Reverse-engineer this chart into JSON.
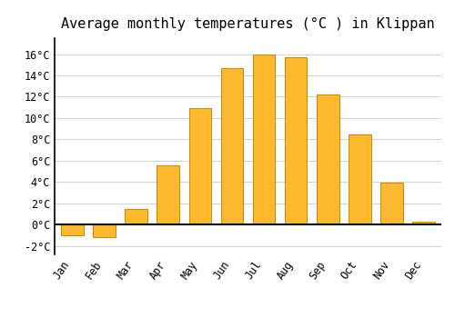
{
  "title": "Average monthly temperatures (°C ) in Klippan",
  "months": [
    "Jan",
    "Feb",
    "Mar",
    "Apr",
    "May",
    "Jun",
    "Jul",
    "Aug",
    "Sep",
    "Oct",
    "Nov",
    "Dec"
  ],
  "values": [
    -1.0,
    -1.2,
    1.5,
    5.6,
    10.9,
    14.7,
    16.0,
    15.7,
    12.2,
    8.5,
    3.9,
    0.3
  ],
  "bar_color": "#FDB92E",
  "bar_edge_color": "#CC8800",
  "background_color": "#FFFFFF",
  "grid_color": "#CCCCCC",
  "ylim": [
    -2.8,
    17.5
  ],
  "yticks": [
    -2,
    0,
    2,
    4,
    6,
    8,
    10,
    12,
    14,
    16
  ],
  "title_fontsize": 11,
  "tick_fontsize": 8.5,
  "zero_line_color": "#000000",
  "spine_color": "#000000"
}
